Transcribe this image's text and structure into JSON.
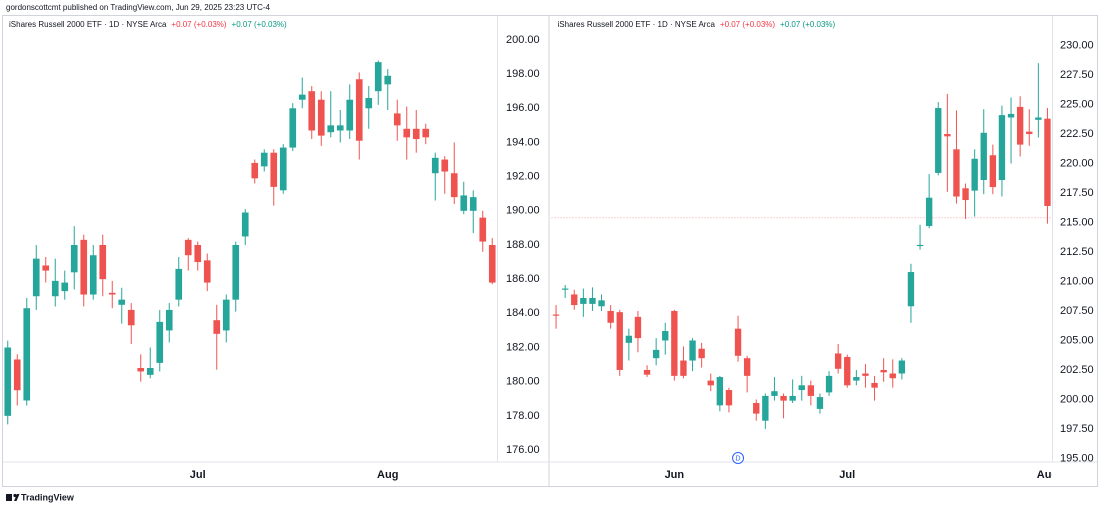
{
  "header": {
    "text": "gordonscottcmt published on TradingView.com, Jun 29, 2025 23:23 UTC-4"
  },
  "footer": {
    "brand": "TradingView"
  },
  "chart_data": [
    {
      "type": "candlestick",
      "title": "iShares Russell 2000 ETF · 1D · NYSE Arca",
      "changes": [
        {
          "text": "+0.07 (+0.03%)",
          "color": "#f23645"
        },
        {
          "text": "+0.07 (+0.03%)",
          "color": "#089981"
        }
      ],
      "up_color": "#26a69a",
      "down_color": "#ef5350",
      "categories": [
        null,
        null,
        null,
        null,
        null,
        null,
        null,
        null,
        null,
        null,
        null,
        null,
        null,
        null,
        null,
        null,
        null,
        null,
        null,
        null,
        "Jul",
        null,
        null,
        null,
        null,
        null,
        null,
        null,
        null,
        null,
        null,
        null,
        null,
        null,
        null,
        null,
        null,
        null,
        null,
        null,
        "Aug",
        null,
        null,
        null,
        null,
        null,
        null,
        null,
        null,
        null,
        null,
        null
      ],
      "open": [
        178.0,
        181.3,
        178.9,
        185.0,
        186.8,
        185.0,
        185.3,
        186.4,
        188.3,
        185.1,
        188.0,
        185.2,
        184.5,
        184.2,
        180.8,
        180.4,
        181.1,
        183.0,
        184.8,
        188.3,
        188.0,
        187.1,
        183.6,
        183.0,
        184.8,
        188.5,
        192.8,
        192.6,
        193.4,
        191.2,
        193.7,
        196.5,
        197.0,
        196.5,
        194.6,
        194.7,
        194.7,
        197.7,
        196.0,
        197.0,
        197.4,
        195.7,
        194.8,
        194.8,
        194.8,
        192.2,
        193.0,
        192.2,
        190.0,
        190.0,
        189.6,
        188.0
      ],
      "high": [
        182.4,
        181.6,
        184.9,
        188.0,
        187.3,
        187.2,
        186.5,
        189.1,
        188.6,
        188.0,
        188.6,
        185.9,
        185.5,
        184.6,
        181.6,
        182.0,
        184.2,
        184.6,
        187.3,
        188.4,
        188.2,
        187.5,
        184.5,
        185.1,
        188.2,
        190.1,
        193.0,
        193.6,
        193.6,
        193.9,
        196.3,
        197.8,
        197.3,
        197.0,
        197.0,
        195.9,
        197.4,
        198.1,
        197.3,
        198.8,
        198.3,
        196.5,
        196.1,
        195.9,
        195.1,
        193.4,
        193.2,
        194.0,
        191.7,
        191.2,
        190.0,
        188.4
      ],
      "low": [
        177.5,
        178.6,
        178.6,
        184.2,
        185.8,
        184.4,
        184.8,
        185.4,
        184.4,
        184.8,
        185.0,
        184.3,
        183.4,
        182.2,
        180.0,
        180.2,
        180.6,
        182.3,
        184.4,
        186.5,
        186.5,
        185.3,
        180.7,
        182.3,
        184.1,
        188.0,
        191.6,
        192.3,
        190.3,
        191.0,
        193.5,
        196.0,
        194.2,
        193.8,
        194.3,
        194.0,
        194.2,
        193.0,
        194.8,
        196.2,
        195.9,
        194.1,
        193.0,
        193.4,
        193.9,
        190.6,
        191.0,
        190.4,
        189.8,
        188.7,
        187.6,
        185.7
      ],
      "close": [
        182.0,
        179.5,
        184.3,
        187.2,
        186.5,
        185.9,
        185.8,
        188.0,
        185.1,
        187.4,
        186.0,
        185.1,
        184.8,
        183.3,
        180.6,
        180.8,
        183.5,
        184.2,
        186.6,
        187.4,
        187.0,
        185.8,
        182.8,
        184.8,
        188.0,
        189.9,
        191.9,
        193.4,
        191.4,
        193.7,
        196.0,
        196.8,
        194.7,
        194.4,
        195.0,
        195.0,
        196.5,
        194.1,
        196.6,
        198.7,
        197.9,
        195.0,
        194.3,
        194.2,
        194.3,
        193.1,
        192.3,
        190.8,
        190.9,
        190.8,
        188.2,
        185.8
      ],
      "ylim": [
        175.3,
        201.4
      ],
      "yticks": [
        {
          "value": 176,
          "label": "176.00"
        },
        {
          "value": 178,
          "label": "178.00"
        },
        {
          "value": 180,
          "label": "180.00"
        },
        {
          "value": 182,
          "label": "182.00"
        },
        {
          "value": 184,
          "label": "184.00"
        },
        {
          "value": 186,
          "label": "186.00"
        },
        {
          "value": 188,
          "label": "188.00"
        },
        {
          "value": 190,
          "label": "190.00"
        },
        {
          "value": 192,
          "label": "192.00"
        },
        {
          "value": 194,
          "label": "194.00"
        },
        {
          "value": 196,
          "label": "196.00"
        },
        {
          "value": 198,
          "label": "198.00"
        },
        {
          "value": 200,
          "label": "200.00"
        }
      ]
    },
    {
      "type": "candlestick",
      "title": "iShares Russell 2000 ETF · 1D · NYSE Arca",
      "changes": [
        {
          "text": "+0.07 (+0.03%)",
          "color": "#f23645"
        },
        {
          "text": "+0.07 (+0.03%)",
          "color": "#089981"
        }
      ],
      "up_color": "#26a69a",
      "down_color": "#ef5350",
      "categories": [
        null,
        null,
        null,
        null,
        null,
        null,
        null,
        null,
        null,
        null,
        null,
        null,
        null,
        "Jun",
        null,
        null,
        null,
        null,
        null,
        null,
        null,
        null,
        null,
        null,
        null,
        null,
        null,
        null,
        null,
        null,
        null,
        null,
        "Jul",
        null,
        null,
        null,
        null,
        null,
        null,
        null,
        null,
        null,
        null,
        null,
        null,
        null,
        null,
        null,
        null,
        null,
        null,
        null,
        null,
        null,
        "Aug"
      ],
      "open": [
        207.2,
        209.3,
        208.9,
        208.1,
        208.1,
        207.9,
        207.5,
        207.4,
        204.8,
        207.0,
        202.5,
        203.5,
        205.0,
        207.5,
        203.3,
        203.3,
        204.3,
        201.6,
        199.5,
        200.8,
        206.0,
        203.5,
        199.7,
        198.2,
        200.3,
        200.3,
        199.9,
        200.8,
        201.2,
        199.2,
        200.6,
        203.9,
        203.6,
        201.6,
        202.2,
        201.4,
        202.5,
        202.2,
        202.2,
        207.9,
        213.0,
        214.7,
        219.2,
        222.5,
        221.2,
        217.9,
        217.7,
        218.6,
        220.7,
        218.6,
        223.9,
        224.8,
        222.7,
        223.7,
        223.8
      ],
      "high": [
        208.0,
        209.7,
        209.3,
        209.4,
        209.5,
        208.9,
        208.0,
        207.6,
        206.0,
        207.5,
        202.9,
        205.2,
        206.5,
        207.6,
        204.5,
        205.2,
        204.8,
        202.2,
        202.0,
        201.0,
        207.1,
        203.7,
        200.0,
        200.5,
        201.9,
        200.5,
        201.7,
        202.0,
        201.6,
        200.5,
        202.4,
        204.7,
        203.8,
        202.5,
        203.0,
        202.0,
        203.5,
        203.4,
        203.5,
        211.5,
        214.8,
        219.1,
        225.2,
        225.9,
        224.5,
        218.3,
        221.2,
        224.6,
        221.6,
        224.9,
        225.6,
        225.7,
        224.6,
        228.5,
        224.7
      ],
      "low": [
        206.0,
        208.6,
        207.6,
        207.0,
        207.5,
        207.5,
        206.0,
        202.0,
        203.3,
        204.0,
        201.9,
        202.9,
        203.8,
        201.6,
        201.8,
        202.4,
        202.7,
        200.7,
        199.0,
        198.9,
        203.2,
        200.6,
        198.2,
        197.5,
        199.9,
        198.4,
        199.7,
        199.9,
        199.5,
        198.8,
        200.3,
        202.2,
        201.0,
        201.2,
        201.0,
        199.9,
        201.5,
        201.0,
        201.7,
        206.5,
        212.7,
        214.5,
        219.0,
        217.6,
        216.6,
        215.3,
        215.5,
        217.4,
        217.4,
        217.2,
        220.0,
        220.6,
        221.5,
        222.2,
        214.9
      ],
      "close": [
        207.1,
        209.4,
        208.0,
        208.6,
        208.6,
        208.4,
        206.5,
        202.5,
        205.4,
        205.2,
        202.1,
        204.2,
        205.8,
        202.0,
        202.0,
        205.0,
        203.5,
        201.2,
        201.9,
        199.5,
        203.7,
        202.0,
        198.8,
        200.3,
        200.7,
        199.9,
        200.3,
        201.2,
        200.3,
        200.2,
        202.0,
        202.6,
        201.2,
        201.9,
        202.0,
        201.0,
        202.3,
        201.8,
        203.3,
        210.8,
        213.1,
        217.1,
        224.7,
        222.3,
        217.2,
        216.9,
        220.4,
        222.6,
        218.0,
        224.1,
        224.2,
        221.6,
        222.5,
        223.9,
        216.4
      ],
      "price_line": 215.4,
      "price_line_color": "#f7a1a8",
      "event_markers": [
        {
          "index": 20,
          "label": "D"
        }
      ],
      "ylim": [
        194.7,
        232.5
      ],
      "yticks": [
        {
          "value": 195,
          "label": "195.00"
        },
        {
          "value": 197.5,
          "label": "197.50"
        },
        {
          "value": 200,
          "label": "200.00"
        },
        {
          "value": 202.5,
          "label": "202.50"
        },
        {
          "value": 205,
          "label": "205.00"
        },
        {
          "value": 207.5,
          "label": "207.50"
        },
        {
          "value": 210,
          "label": "210.00"
        },
        {
          "value": 212.5,
          "label": "212.50"
        },
        {
          "value": 215,
          "label": "215.00"
        },
        {
          "value": 217.5,
          "label": "217.50"
        },
        {
          "value": 220,
          "label": "220.00"
        },
        {
          "value": 222.5,
          "label": "222.50"
        },
        {
          "value": 225,
          "label": "225.00"
        },
        {
          "value": 227.5,
          "label": "227.50"
        },
        {
          "value": 230,
          "label": "230.00"
        }
      ]
    }
  ]
}
